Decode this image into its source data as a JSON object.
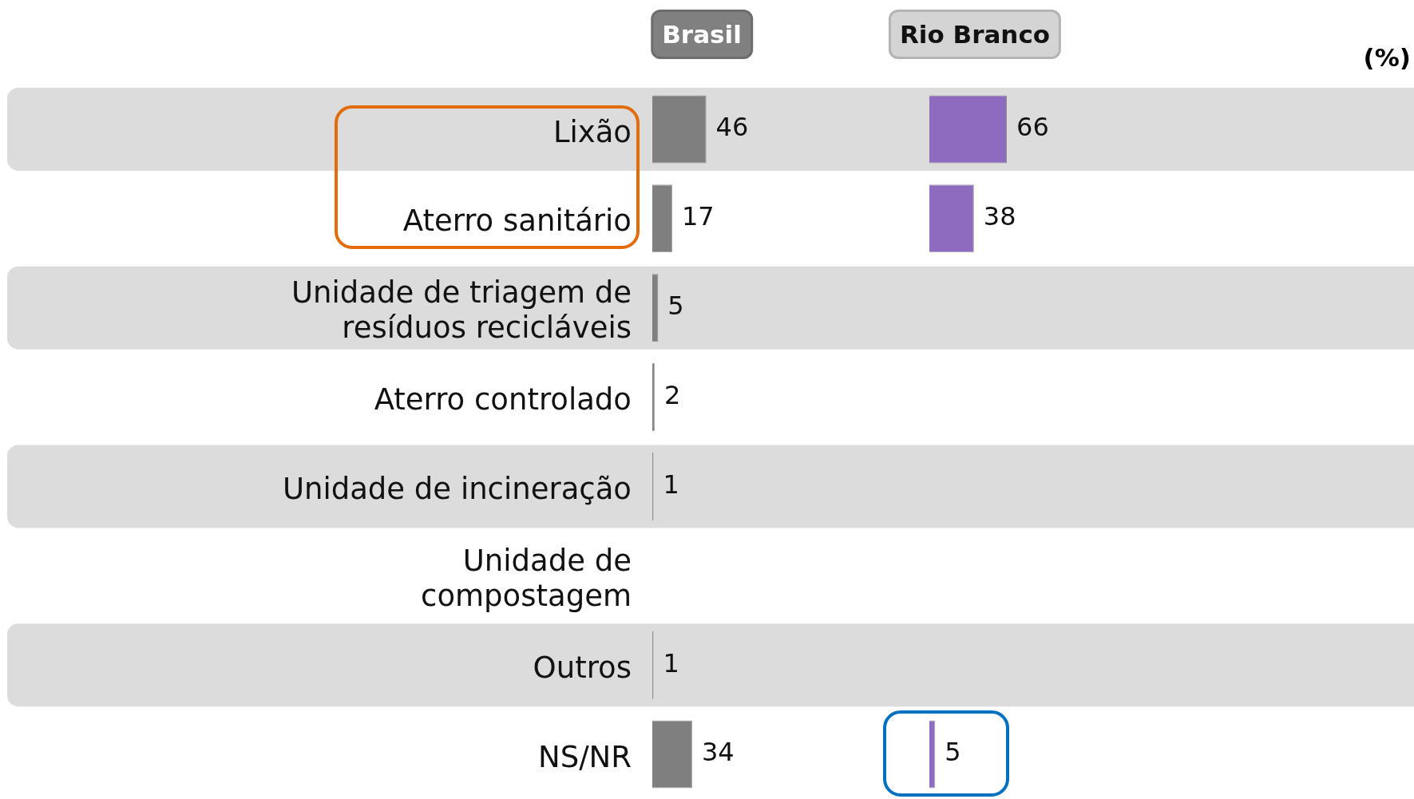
{
  "chart_data": [
    {
      "type": "bar",
      "orientation": "horizontal",
      "title": "Brasil",
      "categories": [
        "Lixão",
        "Aterro sanitário",
        "Unidade de triagem de resíduos recicláveis",
        "Aterro controlado",
        "Unidade de incineração",
        "Unidade de compostagem",
        "Outros",
        "NS/NR"
      ],
      "values": [
        46,
        17,
        5,
        2,
        1,
        null,
        1,
        34
      ],
      "color": "#7f7f7f",
      "data_labels": true,
      "tick_labels": "y",
      "bands": [
        {
          "axis": "y",
          "from": "Lixão",
          "to": "Lixão",
          "color": "#dcdcdc"
        },
        {
          "axis": "y",
          "from": "Unidade de triagem de resíduos recicláveis",
          "to": "Unidade de triagem de resíduos recicláveis",
          "color": "#dcdcdc"
        },
        {
          "axis": "y",
          "from": "Unidade de incineração",
          "to": "Unidade de incineração",
          "color": "#dcdcdc"
        },
        {
          "axis": "y",
          "from": "Outros",
          "to": "Outros",
          "color": "#dcdcdc"
        }
      ]
    },
    {
      "type": "bar",
      "orientation": "horizontal",
      "title": "Rio Branco",
      "categories": [
        null,
        null,
        null,
        null,
        null,
        null,
        null,
        null
      ],
      "values": [
        66,
        38,
        null,
        null,
        null,
        null,
        null,
        5
      ],
      "color": "#8e6bbf",
      "data_labels": true,
      "tick_labels": false,
      "annotations": [
        "(%)"
      ]
    }
  ]
}
